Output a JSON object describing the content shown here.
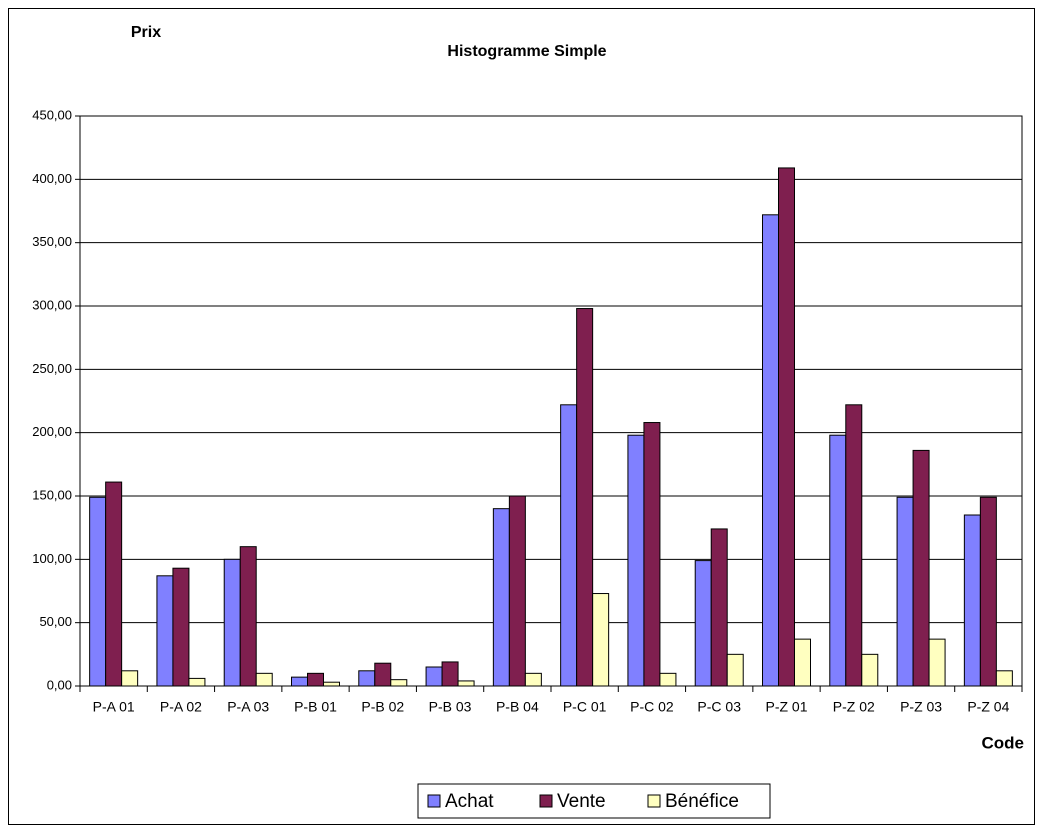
{
  "chart_data": {
    "type": "bar",
    "title": "Histogramme Simple",
    "y_label": "Prix",
    "x_label": "Code",
    "categories": [
      "P-A 01",
      "P-A 02",
      "P-A 03",
      "P-B 01",
      "P-B 02",
      "P-B 03",
      "P-B 04",
      "P-C 01",
      "P-C 02",
      "P-C 03",
      "P-Z 01",
      "P-Z 02",
      "P-Z 03",
      "P-Z 04"
    ],
    "series": [
      {
        "name": "Achat",
        "color": "#8080ff",
        "values": [
          149,
          87,
          100,
          7,
          12,
          15,
          140,
          222,
          198,
          99,
          372,
          198,
          149,
          135
        ]
      },
      {
        "name": "Vente",
        "color": "#7f1f4f",
        "values": [
          161,
          93,
          110,
          10,
          18,
          19,
          150,
          298,
          208,
          124,
          409,
          222,
          186,
          149
        ]
      },
      {
        "name": "Bénéfice",
        "color": "#ffffc0",
        "values": [
          12,
          6,
          10,
          3,
          5,
          4,
          10,
          73,
          10,
          25,
          37,
          25,
          37,
          12
        ]
      }
    ],
    "ylim": [
      0,
      450
    ],
    "yticks": [
      {
        "value": 0,
        "label": "0,00"
      },
      {
        "value": 50,
        "label": "50,00"
      },
      {
        "value": 100,
        "label": "100,00"
      },
      {
        "value": 150,
        "label": "150,00"
      },
      {
        "value": 200,
        "label": "200,00"
      },
      {
        "value": 250,
        "label": "250,00"
      },
      {
        "value": 300,
        "label": "300,00"
      },
      {
        "value": 350,
        "label": "350,00"
      },
      {
        "value": 400,
        "label": "400,00"
      },
      {
        "value": 450,
        "label": "450,00"
      }
    ],
    "grid": true,
    "legend": "bottom"
  }
}
